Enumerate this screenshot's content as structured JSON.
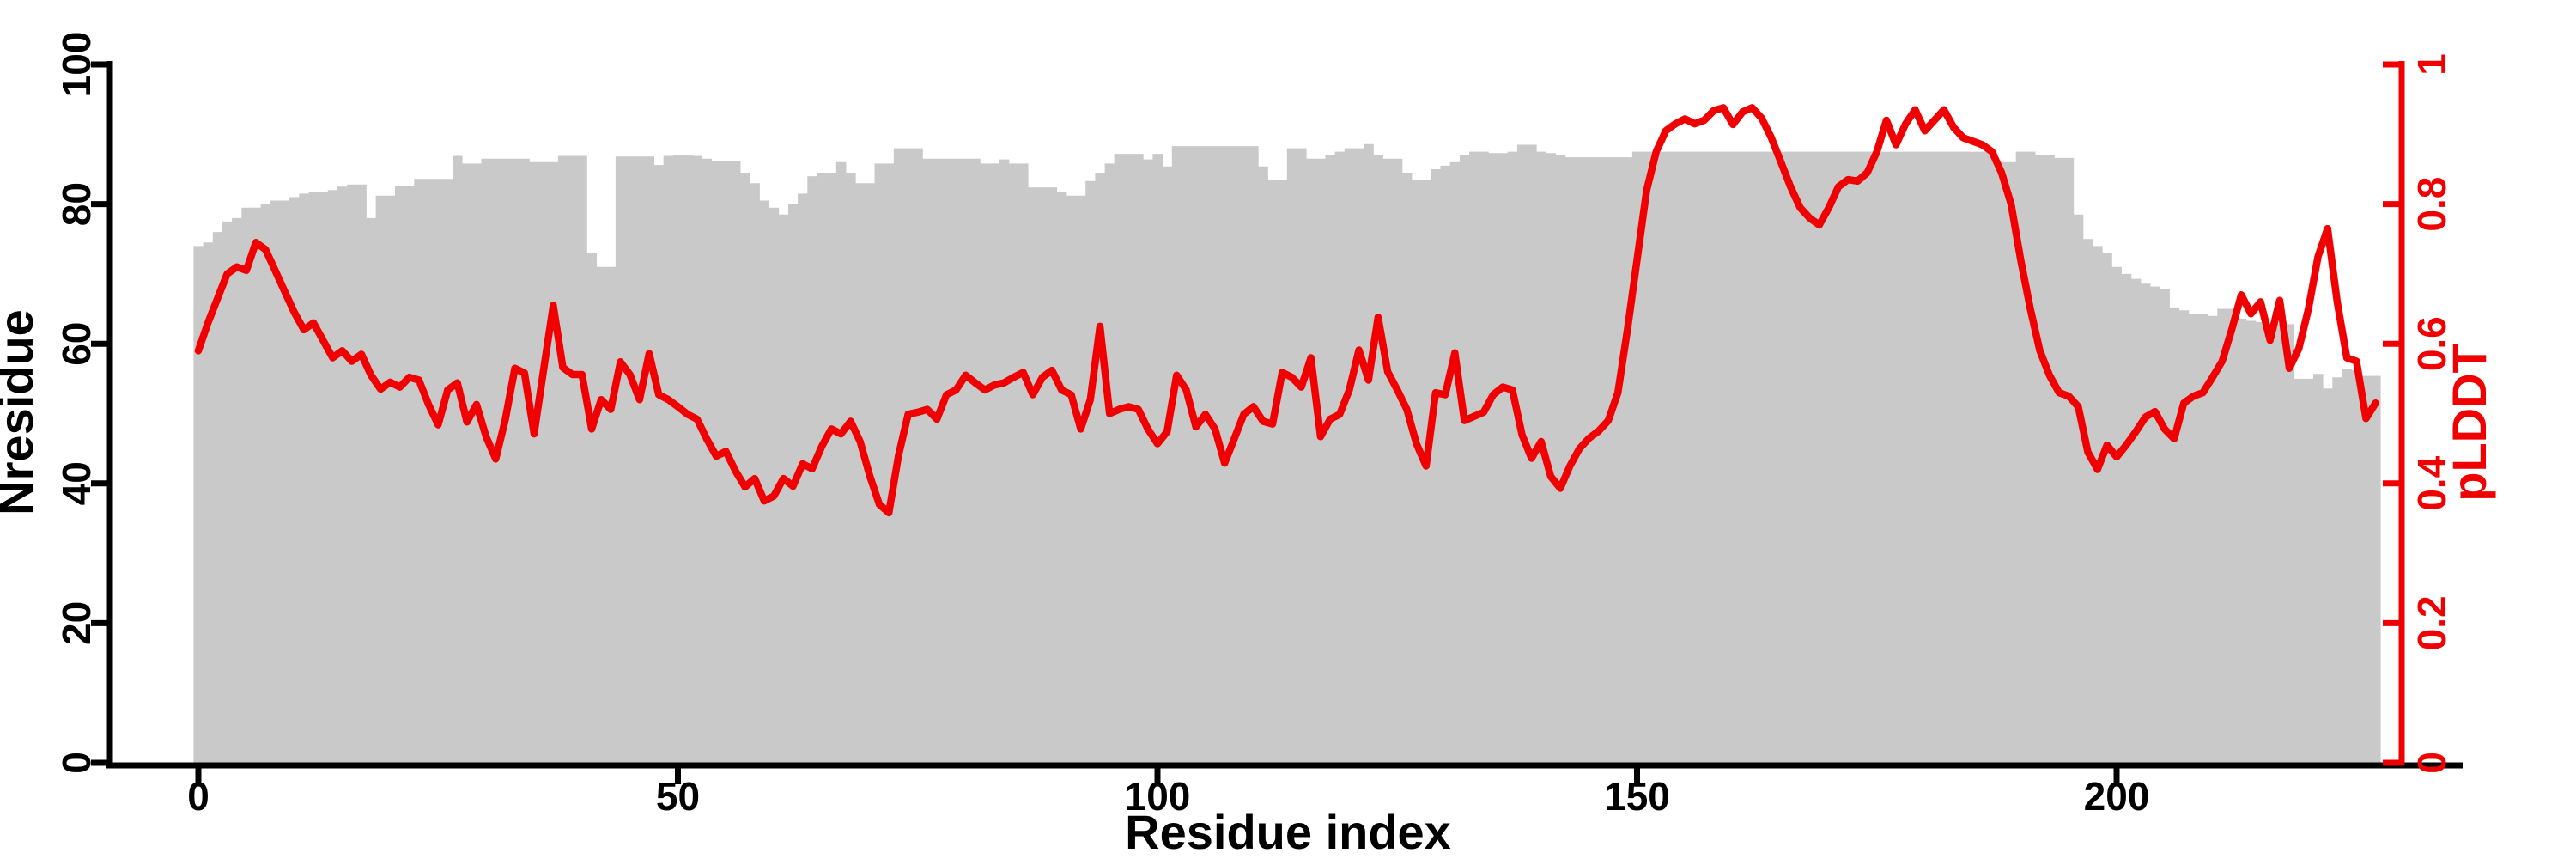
{
  "chart_data": {
    "type": "bar+line",
    "title": "",
    "xlabel": "Residue index",
    "ylabel_left": "Nresidue",
    "ylabel_right": "pLDDT",
    "x_ticks": [
      0,
      50,
      100,
      150,
      200
    ],
    "y_left_ticks": [
      0,
      20,
      40,
      60,
      80,
      100
    ],
    "y_right_ticks": [
      0,
      0.2,
      0.4,
      0.6,
      0.8,
      1
    ],
    "y_left_range": [
      0,
      100
    ],
    "y_right_range": [
      0,
      1
    ],
    "x_range": [
      0,
      229
    ],
    "grid": false,
    "legend": "none",
    "colors": {
      "bars": "#c9c9c9",
      "line": "#f00000",
      "axis_left": "#000000",
      "axis_right": "#f00000",
      "background": "#ffffff"
    },
    "series": [
      {
        "name": "Nresidue",
        "type": "bar",
        "axis": "left",
        "values": [
          74,
          74.5,
          76,
          77.5,
          78,
          79.5,
          79.5,
          80,
          80.5,
          80.5,
          81,
          81.5,
          81.8,
          81.8,
          82,
          82.5,
          82.8,
          82.8,
          78,
          81.2,
          81.2,
          82.6,
          82.6,
          83.6,
          83.6,
          83.6,
          83.6,
          86.9,
          85.8,
          85.8,
          86.5,
          86.5,
          86.5,
          86.5,
          86.5,
          86,
          86,
          86,
          86.9,
          86.9,
          86.9,
          73,
          71,
          71,
          86.8,
          86.8,
          86.8,
          86.8,
          85.6,
          86.9,
          87,
          87,
          86.9,
          86.5,
          86.2,
          86.2,
          86.2,
          84.5,
          83,
          80.5,
          79.5,
          78.5,
          80,
          81.5,
          84,
          84.5,
          84.5,
          86,
          84.5,
          83,
          83,
          85.8,
          85.8,
          88,
          88,
          88,
          86.5,
          86.5,
          86.5,
          86.5,
          86.5,
          86.5,
          85.8,
          85.8,
          86.4,
          85.8,
          85.8,
          82.4,
          82.4,
          82.4,
          81.8,
          81.2,
          81.2,
          83.3,
          84.5,
          85.8,
          87.2,
          87.2,
          87.2,
          86.4,
          87.2,
          85.4,
          88.3,
          88.3,
          88.3,
          88.3,
          88.3,
          88.3,
          88.3,
          88.3,
          88.3,
          85.4,
          83.5,
          83.5,
          88,
          88,
          86.5,
          86.5,
          87,
          87.5,
          88,
          88,
          88.6,
          87,
          86.5,
          86.5,
          84.5,
          83.5,
          83.5,
          85,
          85.5,
          86,
          87,
          87.5,
          87.5,
          87.3,
          87.3,
          87.5,
          88.5,
          88.5,
          87.5,
          87.3,
          87,
          86.7,
          86.7,
          86.7,
          86.7,
          86.7,
          86.7,
          86.7,
          87.5,
          87.5,
          87.5,
          87.5,
          87.5,
          87.5,
          87.5,
          87.5,
          87.5,
          87.5,
          87.5,
          87.5,
          87.5,
          87.5,
          87.5,
          87.5,
          87.5,
          87.5,
          87.5,
          87.5,
          87.5,
          87.5,
          87.5,
          87.5,
          87.5,
          87.5,
          87.5,
          87.5,
          87.5,
          87.5,
          87.5,
          87.5,
          87.5,
          87.5,
          87.5,
          87.5,
          87.5,
          87.5,
          86,
          86,
          87.5,
          87.5,
          87,
          87,
          86.6,
          86.6,
          78.5,
          75,
          74,
          73,
          71,
          70,
          69.3,
          68.6,
          68.2,
          67.8,
          65.2,
          64.8,
          64.3,
          64.3,
          64,
          65,
          65,
          63.6,
          63.3,
          63.1,
          63.1,
          62.8,
          62.8,
          55,
          55,
          55.7,
          53.6,
          55.2,
          56.4,
          56.2,
          55.4,
          55.4
        ]
      },
      {
        "name": "pLDDT",
        "type": "line",
        "axis": "right",
        "values": [
          0.59,
          0.63,
          0.665,
          0.7,
          0.71,
          0.705,
          0.745,
          0.735,
          0.705,
          0.675,
          0.645,
          0.62,
          0.63,
          0.605,
          0.58,
          0.59,
          0.575,
          0.585,
          0.555,
          0.535,
          0.545,
          0.538,
          0.552,
          0.548,
          0.513,
          0.484,
          0.534,
          0.544,
          0.488,
          0.513,
          0.467,
          0.435,
          0.491,
          0.565,
          0.558,
          0.471,
          0.563,
          0.655,
          0.566,
          0.556,
          0.556,
          0.478,
          0.52,
          0.506,
          0.574,
          0.556,
          0.52,
          0.586,
          0.527,
          0.52,
          0.51,
          0.499,
          0.492,
          0.464,
          0.439,
          0.446,
          0.418,
          0.395,
          0.407,
          0.375,
          0.382,
          0.407,
          0.396,
          0.428,
          0.421,
          0.453,
          0.478,
          0.471,
          0.489,
          0.46,
          0.411,
          0.37,
          0.358,
          0.44,
          0.499,
          0.502,
          0.506,
          0.492,
          0.527,
          0.534,
          0.555,
          0.544,
          0.534,
          0.541,
          0.544,
          0.552,
          0.559,
          0.527,
          0.552,
          0.562,
          0.534,
          0.527,
          0.478,
          0.52,
          0.625,
          0.5,
          0.506,
          0.51,
          0.506,
          0.478,
          0.457,
          0.474,
          0.555,
          0.534,
          0.481,
          0.499,
          0.478,
          0.429,
          0.464,
          0.499,
          0.51,
          0.489,
          0.485,
          0.559,
          0.552,
          0.538,
          0.58,
          0.467,
          0.492,
          0.499,
          0.534,
          0.591,
          0.548,
          0.638,
          0.56,
          0.534,
          0.506,
          0.457,
          0.425,
          0.53,
          0.527,
          0.587,
          0.49,
          0.496,
          0.502,
          0.527,
          0.538,
          0.534,
          0.47,
          0.436,
          0.46,
          0.41,
          0.393,
          0.425,
          0.45,
          0.465,
          0.475,
          0.49,
          0.53,
          0.62,
          0.72,
          0.82,
          0.875,
          0.905,
          0.915,
          0.922,
          0.915,
          0.92,
          0.934,
          0.938,
          0.914,
          0.932,
          0.938,
          0.923,
          0.895,
          0.86,
          0.825,
          0.795,
          0.78,
          0.77,
          0.795,
          0.825,
          0.835,
          0.833,
          0.845,
          0.875,
          0.92,
          0.885,
          0.915,
          0.935,
          0.905,
          0.92,
          0.935,
          0.91,
          0.895,
          0.89,
          0.885,
          0.875,
          0.845,
          0.8,
          0.72,
          0.65,
          0.59,
          0.555,
          0.53,
          0.525,
          0.51,
          0.445,
          0.42,
          0.455,
          0.438,
          0.455,
          0.474,
          0.495,
          0.503,
          0.478,
          0.464,
          0.515,
          0.525,
          0.53,
          0.552,
          0.575,
          0.62,
          0.67,
          0.643,
          0.66,
          0.605,
          0.662,
          0.565,
          0.593,
          0.65,
          0.725,
          0.765,
          0.66,
          0.58,
          0.575,
          0.493,
          0.515
        ]
      }
    ]
  }
}
